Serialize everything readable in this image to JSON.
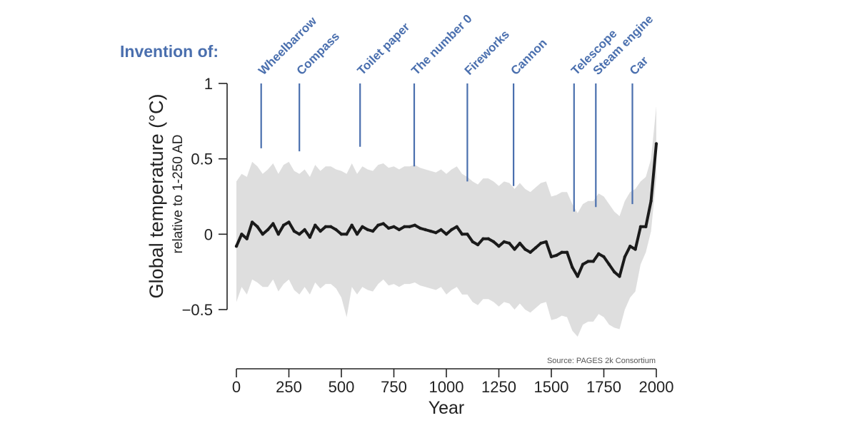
{
  "chart_data": {
    "type": "line",
    "title": "",
    "annotation_prefix": "Invention of:",
    "ylabel": "Global temperature (°C)",
    "ylabel_sub": "relative to 1-250 AD",
    "xlabel": "Year",
    "source": "Source: PAGES 2k Consortium",
    "xlim": [
      0,
      2000
    ],
    "ylim": [
      -0.5,
      1
    ],
    "x_ticks": [
      0,
      250,
      500,
      750,
      1000,
      1250,
      1500,
      1750,
      2000
    ],
    "y_ticks": [
      {
        "value": 1,
        "label": "1"
      },
      {
        "value": 0.5,
        "label": "0.5"
      },
      {
        "value": 0,
        "label": "0"
      },
      {
        "value": -0.5,
        "label": "−0.5"
      }
    ],
    "grid": false,
    "colors": {
      "line": "#1a1a1a",
      "band": "#dedede",
      "annotation": "#4a6fae",
      "axis": "#222222"
    },
    "events": [
      {
        "label": "Wheelbarrow",
        "year": 118,
        "top": 1.0,
        "bottom": 0.57
      },
      {
        "label": "Compass",
        "year": 300,
        "top": 1.0,
        "bottom": 0.55
      },
      {
        "label": "Toilet paper",
        "year": 589,
        "top": 1.0,
        "bottom": 0.58
      },
      {
        "label": "The number 0",
        "year": 847,
        "top": 1.0,
        "bottom": 0.45
      },
      {
        "label": "Fireworks",
        "year": 1100,
        "top": 1.0,
        "bottom": 0.35
      },
      {
        "label": "Cannon",
        "year": 1320,
        "top": 1.0,
        "bottom": 0.32
      },
      {
        "label": "Telescope",
        "year": 1608,
        "top": 1.0,
        "bottom": 0.15
      },
      {
        "label": "Steam engine",
        "year": 1712,
        "top": 1.0,
        "bottom": 0.18
      },
      {
        "label": "Car",
        "year": 1886,
        "top": 1.0,
        "bottom": 0.2
      }
    ],
    "series": [
      {
        "x": [
          0,
          25,
          50,
          75,
          100,
          125,
          150,
          175,
          200,
          225,
          250,
          275,
          300,
          325,
          350,
          375,
          400,
          425,
          450,
          475,
          500,
          525,
          550,
          575,
          600,
          625,
          650,
          675,
          700,
          725,
          750,
          775,
          800,
          825,
          850,
          875,
          900,
          925,
          950,
          975,
          1000,
          1025,
          1050,
          1075,
          1100,
          1125,
          1150,
          1175,
          1200,
          1225,
          1250,
          1275,
          1300,
          1325,
          1350,
          1375,
          1400,
          1425,
          1450,
          1475,
          1500,
          1525,
          1550,
          1575,
          1600,
          1625,
          1650,
          1675,
          1700,
          1725,
          1750,
          1775,
          1800,
          1825,
          1850,
          1875,
          1900,
          1925,
          1950,
          1975,
          2000
        ],
        "y": [
          -0.08,
          0.0,
          -0.03,
          0.08,
          0.05,
          0.0,
          0.03,
          0.07,
          0.0,
          0.06,
          0.08,
          0.02,
          0.0,
          0.03,
          -0.02,
          0.06,
          0.02,
          0.05,
          0.05,
          0.03,
          0.0,
          0.0,
          0.06,
          0.0,
          0.05,
          0.03,
          0.02,
          0.06,
          0.07,
          0.04,
          0.05,
          0.03,
          0.05,
          0.05,
          0.06,
          0.04,
          0.03,
          0.02,
          0.01,
          0.03,
          0.0,
          0.03,
          0.05,
          0.0,
          0.0,
          -0.05,
          -0.07,
          -0.03,
          -0.03,
          -0.05,
          -0.08,
          -0.05,
          -0.06,
          -0.1,
          -0.06,
          -0.1,
          -0.12,
          -0.09,
          -0.06,
          -0.05,
          -0.15,
          -0.14,
          -0.12,
          -0.12,
          -0.22,
          -0.28,
          -0.2,
          -0.18,
          -0.18,
          -0.13,
          -0.15,
          -0.2,
          -0.25,
          -0.28,
          -0.15,
          -0.08,
          -0.1,
          0.05,
          0.05,
          0.22,
          0.6
        ],
        "lower": [
          -0.45,
          -0.35,
          -0.4,
          -0.3,
          -0.32,
          -0.35,
          -0.35,
          -0.3,
          -0.38,
          -0.33,
          -0.3,
          -0.37,
          -0.4,
          -0.35,
          -0.4,
          -0.32,
          -0.36,
          -0.33,
          -0.33,
          -0.36,
          -0.42,
          -0.55,
          -0.35,
          -0.4,
          -0.35,
          -0.37,
          -0.38,
          -0.33,
          -0.3,
          -0.34,
          -0.33,
          -0.35,
          -0.33,
          -0.33,
          -0.32,
          -0.34,
          -0.35,
          -0.36,
          -0.37,
          -0.35,
          -0.4,
          -0.37,
          -0.35,
          -0.4,
          -0.4,
          -0.45,
          -0.47,
          -0.43,
          -0.43,
          -0.45,
          -0.48,
          -0.45,
          -0.46,
          -0.5,
          -0.46,
          -0.5,
          -0.52,
          -0.49,
          -0.46,
          -0.45,
          -0.57,
          -0.56,
          -0.54,
          -0.55,
          -0.64,
          -0.68,
          -0.6,
          -0.58,
          -0.58,
          -0.53,
          -0.55,
          -0.6,
          -0.62,
          -0.63,
          -0.5,
          -0.42,
          -0.38,
          -0.2,
          -0.12,
          0.02,
          0.38
        ],
        "upper": [
          0.35,
          0.4,
          0.38,
          0.48,
          0.45,
          0.4,
          0.43,
          0.47,
          0.4,
          0.46,
          0.48,
          0.42,
          0.4,
          0.43,
          0.38,
          0.46,
          0.42,
          0.45,
          0.45,
          0.43,
          0.42,
          0.4,
          0.47,
          0.4,
          0.45,
          0.43,
          0.42,
          0.46,
          0.47,
          0.44,
          0.45,
          0.43,
          0.45,
          0.45,
          0.46,
          0.44,
          0.43,
          0.42,
          0.41,
          0.43,
          0.4,
          0.43,
          0.45,
          0.4,
          0.38,
          0.35,
          0.33,
          0.37,
          0.37,
          0.35,
          0.32,
          0.35,
          0.34,
          0.3,
          0.34,
          0.3,
          0.28,
          0.31,
          0.34,
          0.35,
          0.25,
          0.26,
          0.28,
          0.28,
          0.2,
          0.14,
          0.2,
          0.22,
          0.22,
          0.27,
          0.25,
          0.2,
          0.15,
          0.12,
          0.22,
          0.28,
          0.3,
          0.35,
          0.38,
          0.5,
          0.85
        ]
      }
    ]
  }
}
